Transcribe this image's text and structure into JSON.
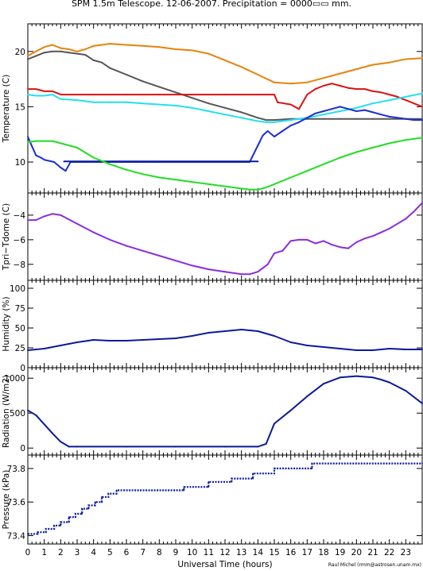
{
  "title": "SPM 1.5m Telescope. 12-06-2007. Precipitation = 0000▭▭ mm.",
  "credit": "Raul Michel (rmm@astrosen.unam.mx)",
  "xlabel": "Universal Time (hours)",
  "xticks": [
    "0",
    "1",
    "2",
    "3",
    "4",
    "5",
    "6",
    "7",
    "8",
    "9",
    "10",
    "11",
    "12",
    "13",
    "14",
    "15",
    "16",
    "17",
    "18",
    "19",
    "20",
    "21",
    "22",
    "23"
  ],
  "colors": {
    "orange": "#e8820a",
    "gray": "#555555",
    "red": "#dd1111",
    "cyan": "#22e0ee",
    "blue": "#1a2fd0",
    "navy": "#0a1a9a",
    "green": "#22dd22",
    "purple": "#8a2be2",
    "axis": "#000000"
  },
  "chart_data": [
    {
      "type": "line",
      "ylabel": "Temperature (C)",
      "yticks": [
        "10",
        "15",
        "20"
      ],
      "ylim": [
        7.2,
        22.5
      ],
      "xlim": [
        0,
        24
      ],
      "series": [
        {
          "color": "orange",
          "x": [
            0,
            0.5,
            1.0,
            1.5,
            2.0,
            2.5,
            3.0,
            3.5,
            4.0,
            4.5,
            5,
            6,
            7,
            8,
            9,
            10,
            11,
            12,
            13,
            14,
            15,
            16,
            17,
            18,
            19,
            20,
            21,
            22,
            23,
            24
          ],
          "y": [
            19.6,
            20.0,
            20.4,
            20.6,
            20.3,
            20.2,
            20.0,
            20.2,
            20.5,
            20.6,
            20.7,
            20.6,
            20.5,
            20.4,
            20.2,
            20.1,
            19.8,
            19.2,
            18.6,
            17.9,
            17.2,
            17.1,
            17.2,
            17.6,
            18.0,
            18.4,
            18.8,
            19.0,
            19.3,
            19.4
          ]
        },
        {
          "color": "gray",
          "x": [
            0,
            0.5,
            1.0,
            1.5,
            2.0,
            2.5,
            3.0,
            3.5,
            4.0,
            4.5,
            5,
            6,
            7,
            8,
            9,
            10,
            11,
            12,
            13,
            14,
            14.5,
            15,
            16,
            17,
            18,
            19,
            20,
            21,
            22,
            23,
            24
          ],
          "y": [
            19.3,
            19.6,
            19.9,
            20.0,
            20.0,
            19.9,
            19.8,
            19.7,
            19.2,
            19.0,
            18.5,
            17.9,
            17.3,
            16.8,
            16.3,
            15.8,
            15.3,
            14.9,
            14.5,
            14.0,
            13.8,
            13.8,
            13.9,
            13.9,
            13.9,
            13.9,
            13.9,
            13.9,
            13.9,
            13.9,
            13.9
          ]
        },
        {
          "color": "red",
          "x": [
            0,
            0.5,
            1.0,
            1.5,
            2,
            4,
            6,
            8,
            10,
            12,
            14,
            15.0,
            15.2,
            16,
            16.5,
            17,
            17.5,
            18,
            18.5,
            19,
            19.5,
            20,
            20.5,
            21,
            21.5,
            22,
            22.5,
            23,
            23.5,
            24
          ],
          "y": [
            16.6,
            16.6,
            16.4,
            16.4,
            16.1,
            16.1,
            16.1,
            16.1,
            16.1,
            16.1,
            16.1,
            16.1,
            15.4,
            15.2,
            14.8,
            16.1,
            16.6,
            16.9,
            17.1,
            16.9,
            16.7,
            16.6,
            16.6,
            16.4,
            16.3,
            16.1,
            15.9,
            15.6,
            15.3,
            15.0
          ]
        },
        {
          "color": "cyan",
          "x": [
            0,
            0.5,
            1.0,
            1.5,
            2,
            3,
            4,
            5,
            6,
            7,
            8,
            9,
            10,
            11,
            12,
            13,
            14,
            14.5,
            15,
            16,
            17,
            18,
            19,
            20,
            21,
            22,
            23,
            24
          ],
          "y": [
            16.1,
            16.0,
            16.0,
            16.1,
            15.7,
            15.6,
            15.4,
            15.4,
            15.4,
            15.3,
            15.2,
            15.1,
            14.9,
            14.6,
            14.3,
            14.0,
            13.7,
            13.6,
            13.6,
            13.8,
            14.0,
            14.3,
            14.6,
            14.9,
            15.3,
            15.6,
            15.9,
            16.2
          ]
        },
        {
          "color": "blue",
          "x": [
            0,
            0.2,
            0.5,
            0.8,
            1.0,
            1.3,
            1.6,
            2.0,
            2.3,
            2.6,
            3,
            6,
            9,
            12,
            13.5,
            14.1,
            14.3,
            14.6,
            15,
            15.5,
            16,
            16.5,
            17,
            17.5,
            18,
            18.5,
            19,
            19.5,
            20,
            20.5,
            21,
            21.5,
            22,
            22.5,
            23,
            23.5,
            24
          ],
          "y": [
            12.3,
            11.6,
            10.6,
            10.4,
            10.2,
            10.1,
            10.0,
            9.5,
            9.2,
            10.0,
            10.0,
            10.0,
            10.0,
            10.0,
            10.0,
            11.8,
            12.4,
            12.8,
            12.3,
            12.8,
            13.3,
            13.6,
            14.0,
            14.4,
            14.6,
            14.8,
            15.0,
            14.8,
            14.6,
            14.7,
            14.5,
            14.3,
            14.1,
            14.0,
            13.9,
            13.8,
            13.8
          ]
        },
        {
          "color": "navy",
          "x": [
            2.2,
            14.0
          ],
          "y": [
            10.05,
            10.05
          ]
        },
        {
          "color": "green",
          "x": [
            0,
            0.5,
            1.0,
            1.5,
            2,
            3,
            4,
            5,
            6,
            7,
            8,
            9,
            10,
            11,
            12,
            13,
            13.5,
            14,
            14.5,
            15,
            16,
            17,
            18,
            19,
            20,
            21,
            22,
            23,
            24
          ],
          "y": [
            11.8,
            11.9,
            11.9,
            11.9,
            11.7,
            11.3,
            10.4,
            9.8,
            9.3,
            8.9,
            8.6,
            8.4,
            8.2,
            8.0,
            7.8,
            7.6,
            7.5,
            7.5,
            7.7,
            8.0,
            8.6,
            9.2,
            9.8,
            10.4,
            10.9,
            11.3,
            11.7,
            12.0,
            12.2
          ]
        }
      ]
    },
    {
      "type": "line",
      "ylabel": "Tpri−Tdome (C)",
      "yticks": [
        "−8",
        "−6",
        "−4"
      ],
      "ylim": [
        -9.3,
        -2.2
      ],
      "xlim": [
        0,
        24
      ],
      "series": [
        {
          "color": "purple",
          "x": [
            0,
            0.5,
            1.0,
            1.5,
            2,
            3,
            4,
            5,
            6,
            7,
            8,
            9,
            10,
            11,
            12,
            13,
            13.5,
            14,
            14.6,
            15.0,
            15.5,
            16.0,
            16.5,
            17,
            17.5,
            18,
            18.5,
            19,
            19.5,
            20,
            20.5,
            21,
            21.5,
            22,
            22.5,
            23,
            23.5,
            24
          ],
          "y": [
            -4.4,
            -4.4,
            -4.1,
            -3.9,
            -4.0,
            -4.7,
            -5.4,
            -6.0,
            -6.5,
            -6.9,
            -7.3,
            -7.7,
            -8.1,
            -8.4,
            -8.6,
            -8.8,
            -8.8,
            -8.6,
            -8.0,
            -7.1,
            -6.9,
            -6.1,
            -6.0,
            -6.0,
            -6.3,
            -6.1,
            -6.4,
            -6.6,
            -6.7,
            -6.2,
            -5.9,
            -5.7,
            -5.4,
            -5.1,
            -4.7,
            -4.3,
            -3.7,
            -3.0
          ]
        }
      ]
    },
    {
      "type": "line",
      "ylabel": "Humidity (%)",
      "yticks": [
        "0",
        "25",
        "50",
        "75",
        "100"
      ],
      "ylim": [
        0,
        110
      ],
      "xlim": [
        0,
        24
      ],
      "series": [
        {
          "color": "navy",
          "x": [
            0,
            1,
            2,
            3,
            4,
            5,
            6,
            7,
            8,
            9,
            10,
            11,
            12,
            13,
            14,
            15,
            16,
            17,
            18,
            19,
            20,
            21,
            22,
            23,
            24
          ],
          "y": [
            22,
            24,
            28,
            32,
            35,
            34,
            34,
            35,
            36,
            37,
            40,
            44,
            46,
            48,
            46,
            40,
            32,
            28,
            26,
            24,
            22,
            22,
            24,
            23,
            23
          ]
        }
      ]
    },
    {
      "type": "line",
      "ylabel": "Radiation (W/m2)",
      "yticks": [
        "0",
        "500",
        "1000"
      ],
      "ylim": [
        -100,
        1150
      ],
      "xlim": [
        0,
        24
      ],
      "series": [
        {
          "color": "navy",
          "x": [
            0,
            0.5,
            1.0,
            1.5,
            2.0,
            2.5,
            3,
            6,
            9,
            12,
            14.0,
            14.5,
            15,
            16,
            17,
            18,
            19,
            20,
            21,
            21.5,
            22,
            23,
            24
          ],
          "y": [
            540,
            470,
            340,
            210,
            90,
            20,
            20,
            20,
            20,
            20,
            20,
            60,
            350,
            540,
            740,
            920,
            1010,
            1030,
            1010,
            980,
            940,
            820,
            640
          ]
        }
      ]
    },
    {
      "type": "scatter",
      "ylabel": "Pressure (kPa)",
      "yticks": [
        "73.4",
        "73.6",
        "73.8"
      ],
      "ylim": [
        73.35,
        73.88
      ],
      "xlim": [
        0,
        24
      ],
      "series": [
        {
          "color": "navy",
          "x": [
            0,
            0.6,
            0.6,
            1.1,
            1.1,
            1.6,
            1.6,
            2.0,
            2.0,
            2.5,
            2.5,
            2.9,
            2.9,
            3.3,
            3.3,
            3.7,
            3.7,
            4.1,
            4.1,
            4.5,
            4.5,
            4.9,
            4.9,
            5.4,
            5.4,
            9.5,
            9.5,
            11.0,
            11.0,
            12.4,
            12.4,
            13.7,
            13.7,
            15.0,
            15.0,
            17.3,
            17.3,
            24
          ],
          "y": [
            73.41,
            73.41,
            73.42,
            73.42,
            73.44,
            73.44,
            73.46,
            73.46,
            73.48,
            73.48,
            73.51,
            73.51,
            73.53,
            73.53,
            73.56,
            73.56,
            73.58,
            73.58,
            73.6,
            73.6,
            73.63,
            73.63,
            73.65,
            73.65,
            73.67,
            73.67,
            73.69,
            73.69,
            73.72,
            73.72,
            73.74,
            73.74,
            73.77,
            73.77,
            73.8,
            73.8,
            73.83,
            73.83
          ]
        }
      ]
    }
  ]
}
